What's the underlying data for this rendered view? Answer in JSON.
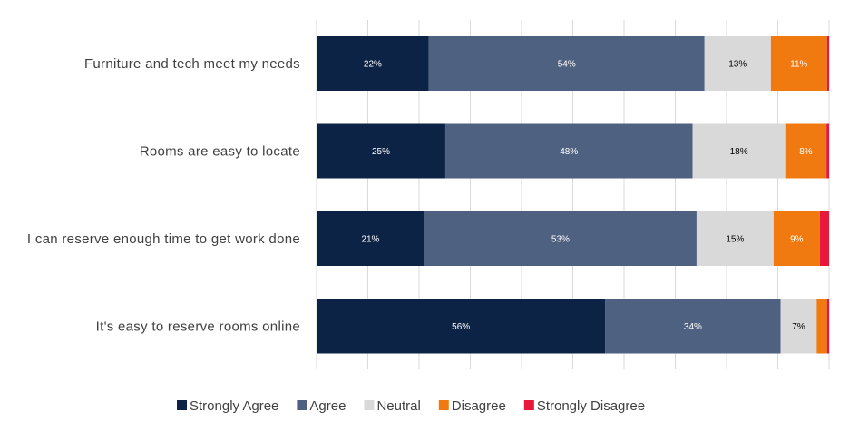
{
  "chart_data": {
    "type": "bar",
    "orientation": "horizontal",
    "stacked": "100%",
    "categories": [
      "Furniture and tech meet my needs",
      "Rooms are easy to locate",
      "I can reserve enough time to get work done",
      "It's easy to reserve rooms online"
    ],
    "series": [
      {
        "name": "Strongly Agree",
        "color": "#0d2346",
        "label_color": "#ffffff",
        "values": [
          22,
          25,
          21,
          56
        ]
      },
      {
        "name": "Agree",
        "color": "#4f6180",
        "label_color": "#ffffff",
        "values": [
          54,
          48,
          53,
          34
        ]
      },
      {
        "name": "Neutral",
        "color": "#d9d9d9",
        "label_color": "#000000",
        "values": [
          13,
          18,
          15,
          7
        ]
      },
      {
        "name": "Disagree",
        "color": "#f07a10",
        "label_color": "#ffffff",
        "values": [
          11,
          8,
          9,
          2
        ]
      },
      {
        "name": "Strongly Disagree",
        "color": "#e8173c",
        "label_color": "#ffffff",
        "values": [
          0.4,
          0.5,
          1.8,
          0.4
        ]
      }
    ],
    "xlim": [
      0,
      100
    ],
    "label_threshold": 5,
    "grid": true,
    "legend": "bottom"
  }
}
